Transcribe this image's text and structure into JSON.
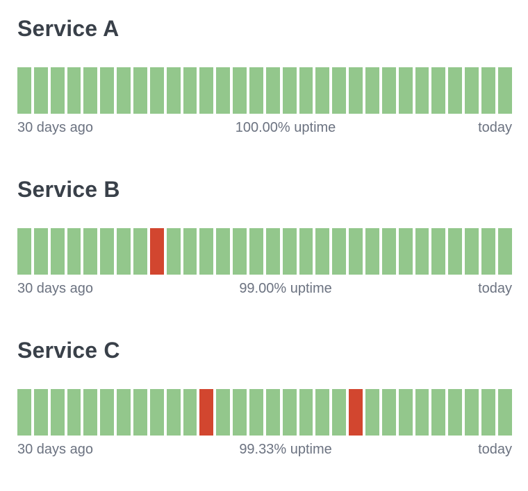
{
  "page": {
    "background": "#ffffff"
  },
  "colors": {
    "up": "#93c78c",
    "down": "#d2462f",
    "title": "#394049",
    "label": "#6b7280"
  },
  "services": [
    {
      "name": "Service A",
      "uptime_percent": "100.00%",
      "labels": {
        "left": "30 days ago",
        "center": "100.00% uptime",
        "right": "today"
      },
      "days": [
        "up",
        "up",
        "up",
        "up",
        "up",
        "up",
        "up",
        "up",
        "up",
        "up",
        "up",
        "up",
        "up",
        "up",
        "up",
        "up",
        "up",
        "up",
        "up",
        "up",
        "up",
        "up",
        "up",
        "up",
        "up",
        "up",
        "up",
        "up",
        "up",
        "up"
      ]
    },
    {
      "name": "Service B",
      "uptime_percent": "99.00%",
      "labels": {
        "left": "30 days ago",
        "center": "99.00% uptime",
        "right": "today"
      },
      "days": [
        "up",
        "up",
        "up",
        "up",
        "up",
        "up",
        "up",
        "up",
        "down",
        "up",
        "up",
        "up",
        "up",
        "up",
        "up",
        "up",
        "up",
        "up",
        "up",
        "up",
        "up",
        "up",
        "up",
        "up",
        "up",
        "up",
        "up",
        "up",
        "up",
        "up"
      ]
    },
    {
      "name": "Service C",
      "uptime_percent": "99.33%",
      "labels": {
        "left": "30 days ago",
        "center": "99.33% uptime",
        "right": "today"
      },
      "days": [
        "up",
        "up",
        "up",
        "up",
        "up",
        "up",
        "up",
        "up",
        "up",
        "up",
        "up",
        "down",
        "up",
        "up",
        "up",
        "up",
        "up",
        "up",
        "up",
        "up",
        "down",
        "up",
        "up",
        "up",
        "up",
        "up",
        "up",
        "up",
        "up",
        "up"
      ]
    }
  ]
}
